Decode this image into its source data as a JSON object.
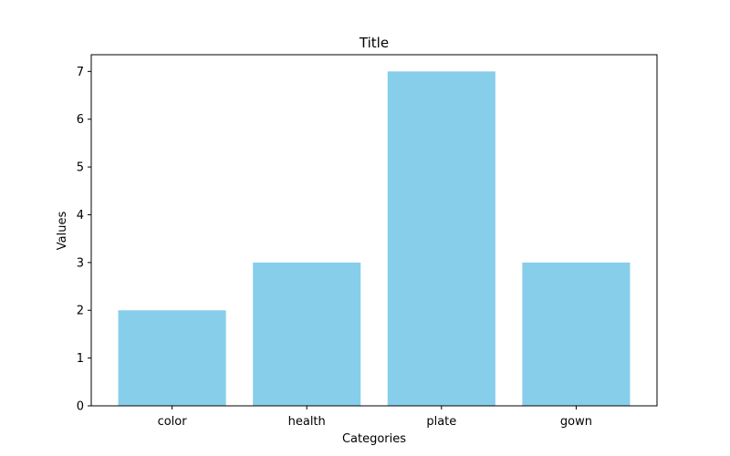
{
  "chart_data": {
    "type": "bar",
    "title": "Title",
    "xlabel": "Categories",
    "ylabel": "Values",
    "categories": [
      "color",
      "health",
      "plate",
      "gown"
    ],
    "values": [
      2,
      3,
      7,
      3
    ],
    "ylim": [
      0,
      7.35
    ],
    "yticks": [
      0,
      1,
      2,
      3,
      4,
      5,
      6,
      7
    ],
    "bar_color": "#87ceeb",
    "grid": false,
    "legend": "none"
  }
}
